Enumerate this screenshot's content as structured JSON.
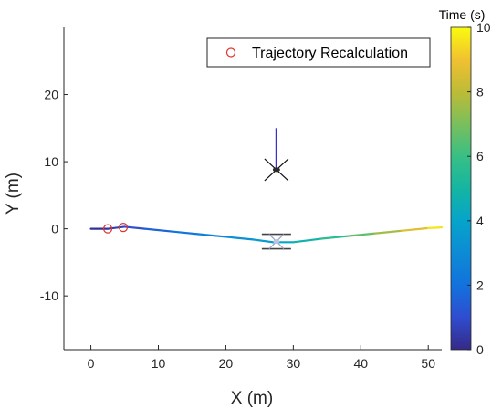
{
  "chart_data": {
    "type": "line",
    "xlabel": "X (m)",
    "ylabel": "Y (m)",
    "xlim": [
      -4,
      52
    ],
    "ylim": [
      -18,
      30
    ],
    "xticks": [
      0,
      10,
      20,
      30,
      40,
      50
    ],
    "yticks": [
      -10,
      0,
      10,
      20
    ],
    "grid": false,
    "legend_position": "top-right",
    "legend": [
      "Trajectory Recalculation"
    ],
    "colorbar": {
      "title": "Time (s)",
      "colormap": "parula",
      "range": [
        0,
        10
      ],
      "ticks": [
        0,
        2,
        4,
        6,
        8,
        10
      ]
    },
    "series": [
      {
        "name": "trajectory",
        "x": [
          0,
          2.5,
          5,
          8,
          12,
          16,
          20,
          24,
          27,
          30,
          34,
          38,
          42,
          46,
          50,
          52
        ],
        "y": [
          0,
          0,
          0.3,
          0,
          -0.4,
          -0.8,
          -1.2,
          -1.6,
          -2.0,
          -2.0,
          -1.5,
          -1.1,
          -0.7,
          -0.3,
          0.1,
          0.2
        ],
        "t": [
          0,
          0.4,
          0.8,
          1.3,
          1.9,
          2.4,
          2.9,
          3.4,
          3.8,
          4.3,
          5.2,
          6.1,
          7.1,
          8.1,
          9.2,
          10
        ]
      },
      {
        "name": "Trajectory Recalculation",
        "marker": "circle",
        "color": "#e0332f",
        "x": [
          2.5,
          4.8
        ],
        "y": [
          0,
          0.2
        ]
      },
      {
        "name": "vertical segment",
        "x": [
          27.5,
          27.5
        ],
        "y": [
          8.8,
          15
        ],
        "color": "#3a2fc9"
      }
    ],
    "markers": [
      {
        "type": "cross",
        "x": 27.5,
        "y": 8.8,
        "color": "#000000"
      },
      {
        "type": "drone",
        "x": 27.5,
        "y": -1.9,
        "color": "#555555"
      }
    ]
  }
}
